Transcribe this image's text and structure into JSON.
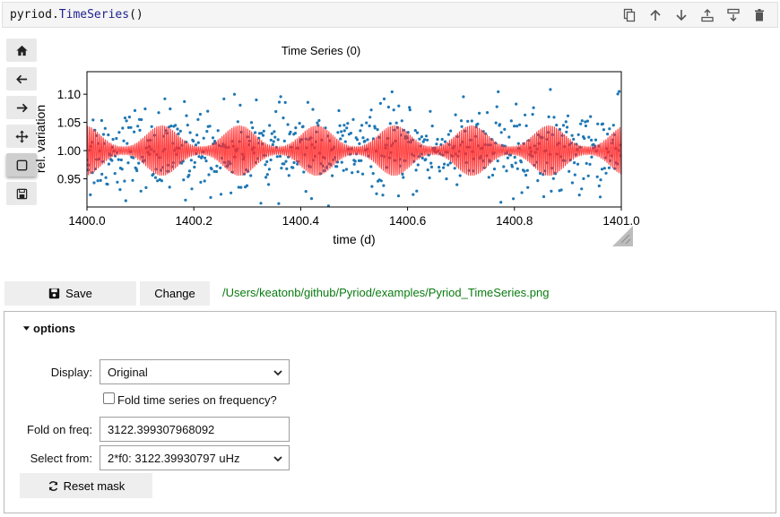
{
  "code_cell": {
    "obj": "pyriod",
    "dot": ".",
    "fn": "TimeSeries",
    "parens": "()",
    "toolbar_icons": [
      "copy-icon",
      "arrow-up-icon",
      "arrow-down-icon",
      "insert-above-icon",
      "insert-below-icon",
      "trash-icon"
    ]
  },
  "mpl_toolbar": {
    "icons": [
      "home-icon",
      "back-arrow-icon",
      "forward-arrow-icon",
      "pan-icon",
      "zoom-rect-icon",
      "save-icon"
    ],
    "active": "zoom-rect-icon"
  },
  "chart_data": {
    "type": "scatter",
    "title": "Time Series (0)",
    "xlabel": "time (d)",
    "ylabel": "rel. variation",
    "xlim": [
      1400.0,
      1401.0
    ],
    "ylim": [
      0.9,
      1.14
    ],
    "xticks": [
      "1400.0",
      "1400.2",
      "1400.4",
      "1400.6",
      "1400.8",
      "1401.0"
    ],
    "yticks": [
      "1.10",
      "1.05",
      "1.00",
      "0.95"
    ],
    "xtick_values": [
      1400.0,
      1400.2,
      1400.4,
      1400.6,
      1400.8,
      1401.0
    ],
    "ytick_values": [
      1.1,
      1.05,
      1.0,
      0.95
    ],
    "series": [
      {
        "kind": "points",
        "color": "#1f77b4",
        "description": "observed flux, ~720 points between x=1400.0 and x=1401.0, centered at y=1.00 with scatter about ±0.05",
        "n_points": 720,
        "center": 1.0,
        "scatter": 0.05
      },
      {
        "kind": "model-curve",
        "color": "#ff2a2a",
        "base": 1.0,
        "carrier_frequency_per_day": 270,
        "max_amplitude": 0.045
      }
    ]
  },
  "save_row": {
    "save_label": "Save",
    "change_label": "Change",
    "path": "/Users/keatonb/github/Pyriod/examples/Pyriod_TimeSeries.png"
  },
  "options": {
    "header": "options",
    "display_label": "Display:",
    "display_value": "Original",
    "fold_checkbox_label": "Fold time series on frequency?",
    "fold_checked": false,
    "fold_freq_label": "Fold on freq:",
    "fold_freq_value": "3122.399307968092",
    "select_from_label": "Select from:",
    "select_from_value": "2*f0: 3122.39930797 uHz",
    "reset_label": "Reset mask"
  }
}
